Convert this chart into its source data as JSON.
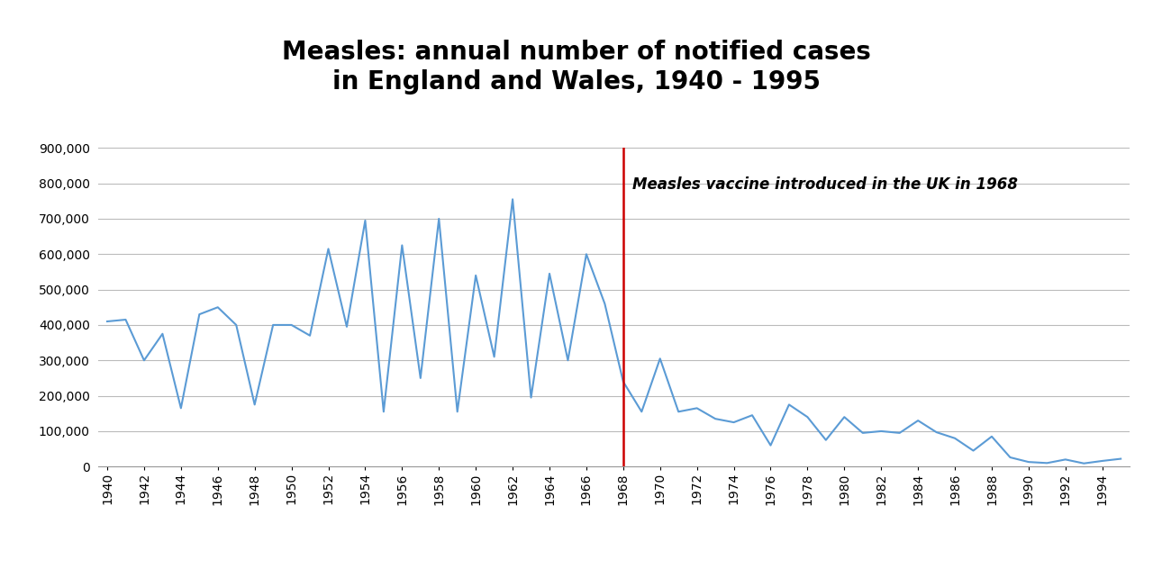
{
  "title": "Measles: annual number of notified cases\nin England and Wales, 1940 - 1995",
  "years": [
    1940,
    1941,
    1942,
    1943,
    1944,
    1945,
    1946,
    1947,
    1948,
    1949,
    1950,
    1951,
    1952,
    1953,
    1954,
    1955,
    1956,
    1957,
    1958,
    1959,
    1960,
    1961,
    1962,
    1963,
    1964,
    1965,
    1966,
    1967,
    1968,
    1969,
    1970,
    1971,
    1972,
    1973,
    1974,
    1975,
    1976,
    1977,
    1978,
    1979,
    1980,
    1981,
    1982,
    1983,
    1984,
    1985,
    1986,
    1987,
    1988,
    1989,
    1990,
    1991,
    1992,
    1993,
    1994,
    1995
  ],
  "values": [
    410000,
    415000,
    300000,
    375000,
    165000,
    430000,
    450000,
    400000,
    175000,
    400000,
    400000,
    370000,
    615000,
    395000,
    695000,
    155000,
    625000,
    250000,
    700000,
    155000,
    540000,
    310000,
    755000,
    195000,
    545000,
    300000,
    600000,
    460000,
    240000,
    155000,
    305000,
    155000,
    165000,
    135000,
    125000,
    145000,
    60000,
    175000,
    140000,
    75000,
    140000,
    95000,
    100000,
    95000,
    130000,
    97000,
    80000,
    45000,
    85000,
    26000,
    13000,
    10000,
    20000,
    9000,
    16000,
    22000
  ],
  "line_color": "#5b9bd5",
  "vaccine_year": 1968,
  "vaccine_label": "Measles vaccine introduced in the UK in 1968",
  "vaccine_line_color": "#cc0000",
  "ylim": [
    0,
    900000
  ],
  "yticks": [
    0,
    100000,
    200000,
    300000,
    400000,
    500000,
    600000,
    700000,
    800000,
    900000
  ],
  "background_color": "#ffffff",
  "grid_color": "#bbbbbb",
  "title_fontsize": 20,
  "tick_fontsize": 10,
  "annotation_fontsize": 12
}
